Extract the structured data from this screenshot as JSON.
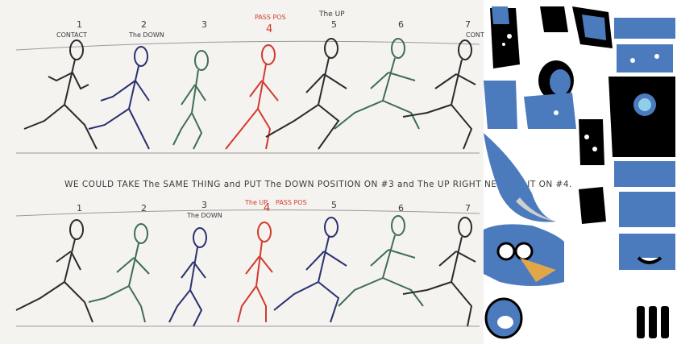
{
  "colors": {
    "paper": "#f4f3f0",
    "pencil": "#2b2b2b",
    "navy": "#2b3170",
    "green": "#3f6e52",
    "red": "#d23a2e",
    "blue_part": "#4b7bbd",
    "black_part": "#000000"
  },
  "top_row": {
    "frame_numbers": [
      "1",
      "2",
      "3",
      "4",
      "5",
      "6",
      "7"
    ],
    "annotations": {
      "contact": "CONTACT",
      "the_down": "The DOWN",
      "pass_pos": "PASS POS",
      "the_up": "The UP",
      "contact_end": "CONT"
    }
  },
  "caption": "WE COULD TAKE The SAME THING and PUT The DOWN POSITION ON #3 and The UP RIGHT NEXT TO IT ON #4.",
  "bottom_row": {
    "frame_numbers": [
      "1",
      "2",
      "3",
      "4",
      "5",
      "6",
      "7"
    ],
    "annotations": {
      "the_down": "The DOWN",
      "the_up": "The UP",
      "pass_pos": "PASS POS"
    }
  },
  "character_parts": {
    "icons": [
      "head-part",
      "torso-part",
      "arm-part",
      "leg-part",
      "hand-part",
      "mouth-part",
      "eye-part",
      "foot-part"
    ]
  }
}
